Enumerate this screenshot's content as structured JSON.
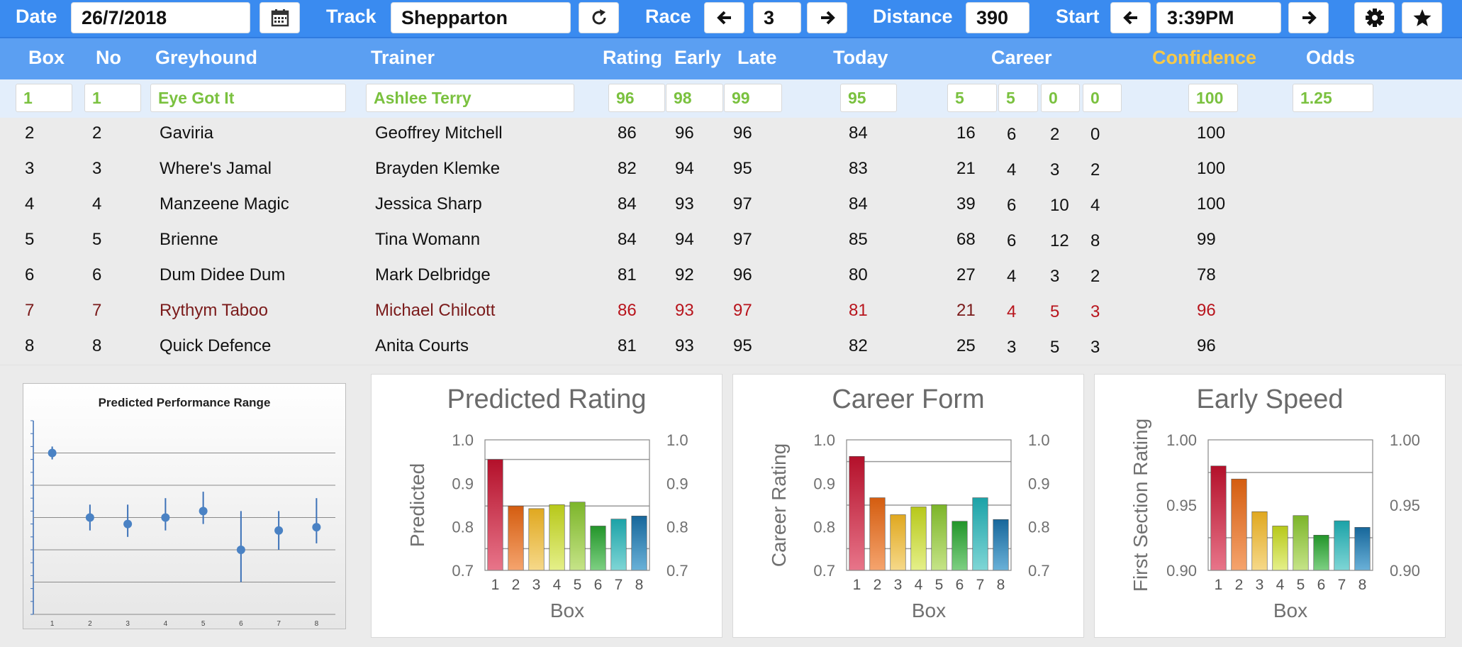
{
  "toolbar": {
    "date_label": "Date",
    "date_value": "26/7/2018",
    "track_label": "Track",
    "track_value": "Shepparton",
    "race_label": "Race",
    "race_value": "3",
    "distance_label": "Distance",
    "distance_value": "390",
    "start_label": "Start",
    "start_value": "3:39PM"
  },
  "columns": {
    "box": "Box",
    "no": "No",
    "greyhound": "Greyhound",
    "trainer": "Trainer",
    "rating": "Rating",
    "early": "Early",
    "late": "Late",
    "today": "Today",
    "career": "Career",
    "confidence": "Confidence",
    "odds": "Odds"
  },
  "colors": {
    "toolbar": "#3a8bf0",
    "header": "#5b9ff2",
    "confidence_header": "#f7c948",
    "selected_text": "#7ac13f",
    "selected_row": "#e3eefb",
    "alert_text": "#7a1a1a",
    "alert_numbers": "#b8141c"
  },
  "rows": [
    {
      "box": "1",
      "no": "1",
      "greyhound": "Eye Got It",
      "trainer": "Ashlee Terry",
      "rating": "96",
      "early": "98",
      "late": "99",
      "today": "95",
      "c1": "5",
      "c2": "5",
      "c3": "0",
      "c4": "0",
      "confidence": "100",
      "odds": "1.25"
    },
    {
      "box": "2",
      "no": "2",
      "greyhound": "Gaviria",
      "trainer": "Geoffrey Mitchell",
      "rating": "86",
      "early": "96",
      "late": "96",
      "today": "84",
      "c1": "16",
      "c2": "6",
      "c3": "2",
      "c4": "0",
      "confidence": "100",
      "odds": ""
    },
    {
      "box": "3",
      "no": "3",
      "greyhound": "Where's Jamal",
      "trainer": "Brayden Klemke",
      "rating": "82",
      "early": "94",
      "late": "95",
      "today": "83",
      "c1": "21",
      "c2": "4",
      "c3": "3",
      "c4": "2",
      "confidence": "100",
      "odds": ""
    },
    {
      "box": "4",
      "no": "4",
      "greyhound": "Manzeene Magic",
      "trainer": "Jessica Sharp",
      "rating": "84",
      "early": "93",
      "late": "97",
      "today": "84",
      "c1": "39",
      "c2": "6",
      "c3": "10",
      "c4": "4",
      "confidence": "100",
      "odds": ""
    },
    {
      "box": "5",
      "no": "5",
      "greyhound": "Brienne",
      "trainer": "Tina Womann",
      "rating": "84",
      "early": "94",
      "late": "97",
      "today": "85",
      "c1": "68",
      "c2": "6",
      "c3": "12",
      "c4": "8",
      "confidence": "99",
      "odds": ""
    },
    {
      "box": "6",
      "no": "6",
      "greyhound": "Dum Didee Dum",
      "trainer": "Mark Delbridge",
      "rating": "81",
      "early": "92",
      "late": "96",
      "today": "80",
      "c1": "27",
      "c2": "4",
      "c3": "3",
      "c4": "2",
      "confidence": "78",
      "odds": ""
    },
    {
      "box": "7",
      "no": "7",
      "greyhound": "Rythym Taboo",
      "trainer": "Michael Chilcott",
      "rating": "86",
      "early": "93",
      "late": "97",
      "today": "81",
      "c1": "21",
      "c2": "4",
      "c3": "5",
      "c4": "3",
      "confidence": "96",
      "odds": ""
    },
    {
      "box": "8",
      "no": "8",
      "greyhound": "Quick Defence",
      "trainer": "Anita Courts",
      "rating": "81",
      "early": "93",
      "late": "95",
      "today": "82",
      "c1": "25",
      "c2": "3",
      "c3": "5",
      "c4": "3",
      "confidence": "96",
      "odds": ""
    }
  ],
  "chart_data": [
    {
      "type": "scatter",
      "title": "Predicted Performance Range",
      "x": [
        1,
        2,
        3,
        4,
        5,
        6,
        7,
        8
      ],
      "y": [
        0.95,
        0.85,
        0.84,
        0.85,
        0.86,
        0.8,
        0.83,
        0.835
      ],
      "low": [
        0.94,
        0.83,
        0.82,
        0.83,
        0.84,
        0.75,
        0.8,
        0.81
      ],
      "high": [
        0.96,
        0.87,
        0.87,
        0.88,
        0.89,
        0.86,
        0.86,
        0.88
      ],
      "ylim": [
        0.7,
        1.0
      ],
      "grid": true
    },
    {
      "type": "bar",
      "title": "Predicted Rating",
      "categories": [
        "1",
        "2",
        "3",
        "4",
        "5",
        "6",
        "7",
        "8"
      ],
      "values": [
        0.955,
        0.848,
        0.842,
        0.851,
        0.857,
        0.802,
        0.818,
        0.825
      ],
      "ylabel": "Predicted",
      "xlabel": "Box",
      "ylim": [
        0.7,
        1.0
      ],
      "ticks": [
        "0.7",
        "0.8",
        "0.9",
        "1.0"
      ],
      "guides": [
        0.955,
        0.848,
        0.75
      ]
    },
    {
      "type": "bar",
      "title": "Career Form",
      "categories": [
        "1",
        "2",
        "3",
        "4",
        "5",
        "6",
        "7",
        "8"
      ],
      "values": [
        0.962,
        0.867,
        0.828,
        0.846,
        0.851,
        0.813,
        0.867,
        0.817
      ],
      "ylabel": "Career Rating",
      "xlabel": "Box",
      "ylim": [
        0.7,
        1.0
      ],
      "ticks": [
        "0.7",
        "0.8",
        "0.9",
        "1.0"
      ],
      "guides": [
        0.95,
        0.85,
        0.75
      ]
    },
    {
      "type": "bar",
      "title": "Early Speed",
      "categories": [
        "1",
        "2",
        "3",
        "4",
        "5",
        "6",
        "7",
        "8"
      ],
      "values": [
        0.98,
        0.97,
        0.945,
        0.934,
        0.942,
        0.927,
        0.938,
        0.933
      ],
      "ylabel": "First Section Rating",
      "xlabel": "Box",
      "ylim": [
        0.9,
        1.0
      ],
      "ticks": [
        "0.90",
        "0.95",
        "1.00"
      ],
      "guides": [
        0.975,
        0.925
      ]
    }
  ],
  "icons": {
    "calendar": "calendar-icon",
    "refresh": "refresh-icon",
    "left": "arrow-left-icon",
    "right": "arrow-right-icon",
    "gear": "gear-icon",
    "star": "star-icon"
  }
}
